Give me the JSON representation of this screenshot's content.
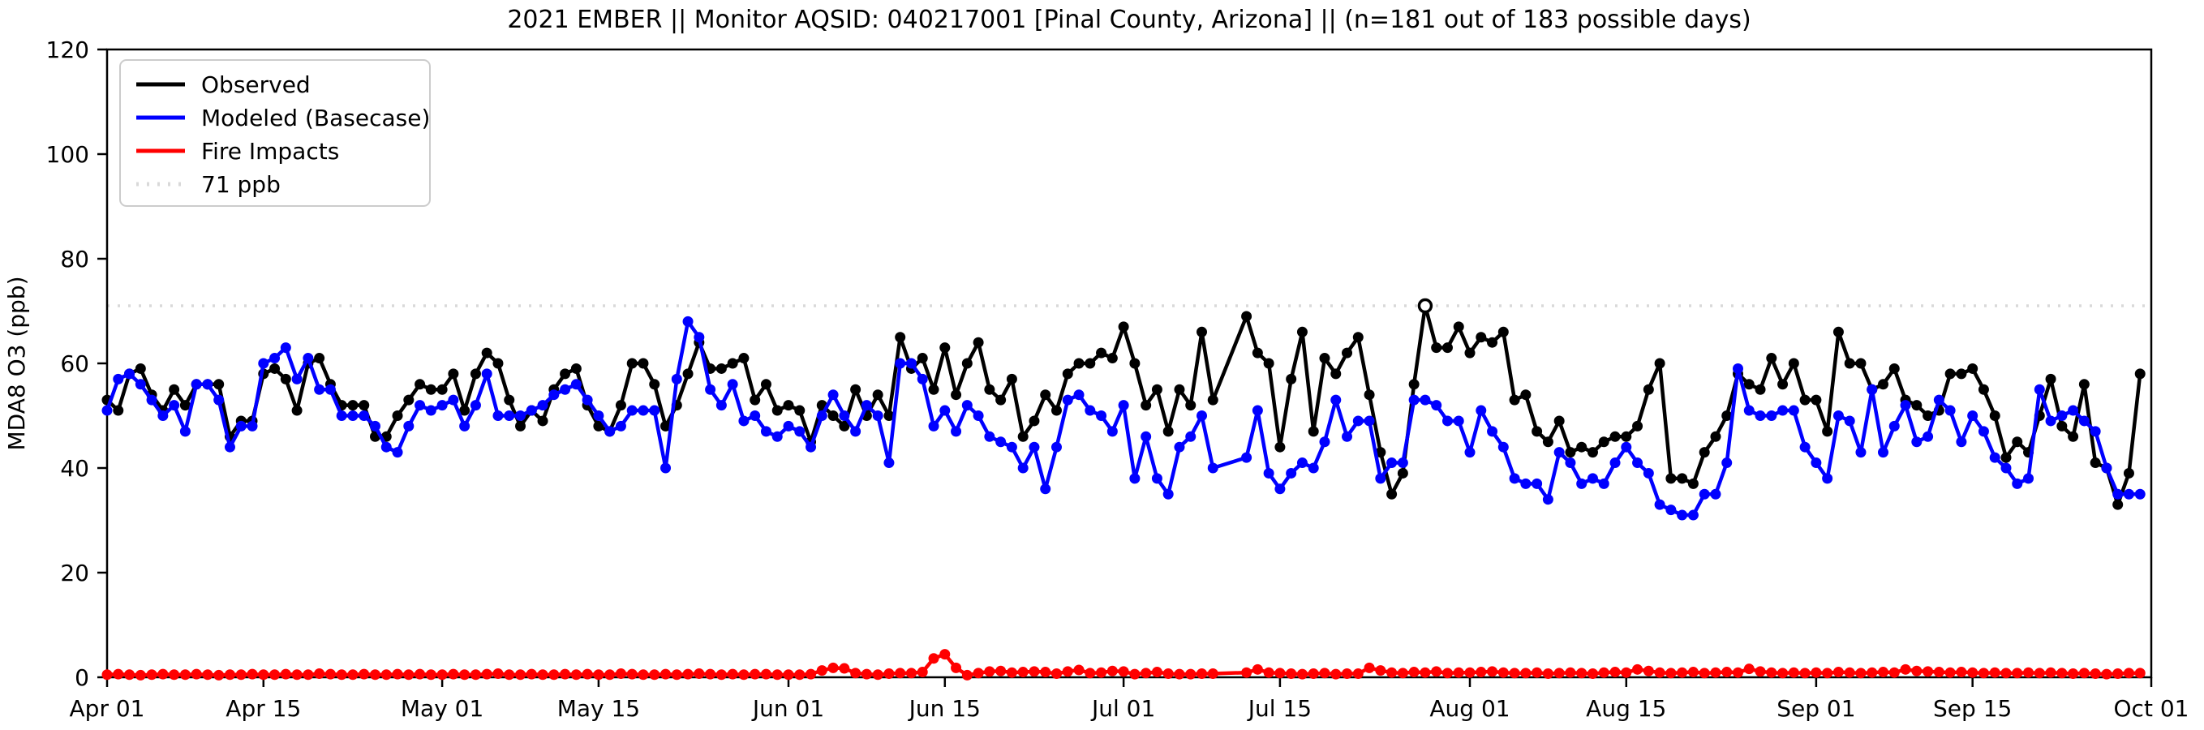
{
  "chart_data": {
    "type": "line",
    "title": "2021 EMBER || Monitor AQSID: 040217001 [Pinal County, Arizona] || (n=181 out of 183 possible days)",
    "xlabel": "",
    "ylabel": "MDA8 O3 (ppb)",
    "ylim": [
      0,
      120
    ],
    "y_ticks": [
      0,
      20,
      40,
      60,
      80,
      100,
      120
    ],
    "x_ticks": [
      {
        "day": 0,
        "label": "Apr 01"
      },
      {
        "day": 14,
        "label": "Apr 15"
      },
      {
        "day": 30,
        "label": "May 01"
      },
      {
        "day": 44,
        "label": "May 15"
      },
      {
        "day": 61,
        "label": "Jun 01"
      },
      {
        "day": 75,
        "label": "Jun 15"
      },
      {
        "day": 91,
        "label": "Jul 01"
      },
      {
        "day": 105,
        "label": "Jul 15"
      },
      {
        "day": 122,
        "label": "Aug 01"
      },
      {
        "day": 136,
        "label": "Aug 15"
      },
      {
        "day": 153,
        "label": "Sep 01"
      },
      {
        "day": 167,
        "label": "Sep 15"
      },
      {
        "day": 183,
        "label": "Oct 01"
      }
    ],
    "x_range_days": 183,
    "grid": false,
    "legend_position": "upper-left",
    "threshold_line": {
      "value": 71,
      "label": "71 ppb",
      "color": "#d9d9d9",
      "style": "dotted"
    },
    "exceedance_marker": {
      "series": "Observed",
      "index": 118,
      "style": "open-circle",
      "note": "observed value at 71 ppb shown as open circle"
    },
    "missing_days_indices": [
      100,
      101
    ],
    "series": [
      {
        "name": "Observed",
        "color": "#000000",
        "values": [
          53,
          51,
          58,
          59,
          54,
          51,
          55,
          52,
          56,
          56,
          56,
          46,
          49,
          49,
          58,
          59,
          57,
          51,
          60,
          61,
          56,
          52,
          52,
          52,
          46,
          46,
          50,
          53,
          56,
          55,
          55,
          58,
          51,
          58,
          62,
          60,
          53,
          48,
          51,
          49,
          55,
          58,
          59,
          52,
          48,
          47,
          52,
          60,
          60,
          56,
          48,
          52,
          58,
          64,
          59,
          59,
          60,
          61,
          53,
          56,
          51,
          52,
          51,
          45,
          52,
          50,
          48,
          55,
          50,
          54,
          50,
          65,
          59,
          61,
          55,
          63,
          54,
          60,
          64,
          55,
          53,
          57,
          46,
          49,
          54,
          51,
          58,
          60,
          60,
          62,
          61,
          67,
          60,
          52,
          55,
          47,
          55,
          52,
          66,
          53,
          null,
          null,
          69,
          62,
          60,
          44,
          57,
          66,
          47,
          61,
          58,
          62,
          65,
          54,
          43,
          35,
          39,
          56,
          71,
          63,
          63,
          67,
          62,
          65,
          64,
          66,
          53,
          54,
          47,
          45,
          49,
          43,
          44,
          43,
          45,
          46,
          46,
          48,
          55,
          60,
          38,
          38,
          37,
          43,
          46,
          50,
          58,
          56,
          55,
          61,
          56,
          60,
          53,
          53,
          47,
          66,
          60,
          60,
          55,
          56,
          59,
          53,
          52,
          50,
          51,
          58,
          58,
          59,
          55,
          50,
          42,
          45,
          43,
          50,
          57,
          48,
          46,
          56,
          41,
          40,
          33,
          39,
          58
        ]
      },
      {
        "name": "Modeled (Basecase)",
        "color": "#0000ff",
        "values": [
          51,
          57,
          58,
          56,
          53,
          50,
          52,
          47,
          56,
          56,
          53,
          44,
          48,
          48,
          60,
          61,
          63,
          57,
          61,
          55,
          55,
          50,
          50,
          50,
          48,
          44,
          43,
          48,
          52,
          51,
          52,
          53,
          48,
          52,
          58,
          50,
          50,
          50,
          51,
          52,
          54,
          55,
          56,
          53,
          50,
          47,
          48,
          51,
          51,
          51,
          40,
          57,
          68,
          65,
          55,
          52,
          56,
          49,
          50,
          47,
          46,
          48,
          47,
          44,
          50,
          54,
          50,
          47,
          52,
          50,
          41,
          60,
          60,
          57,
          48,
          51,
          47,
          52,
          50,
          46,
          45,
          44,
          40,
          44,
          36,
          44,
          53,
          54,
          51,
          50,
          47,
          52,
          38,
          46,
          38,
          35,
          44,
          46,
          50,
          40,
          null,
          null,
          42,
          51,
          39,
          36,
          39,
          41,
          40,
          45,
          53,
          46,
          49,
          49,
          38,
          41,
          41,
          53,
          53,
          52,
          49,
          49,
          43,
          51,
          47,
          44,
          38,
          37,
          37,
          34,
          43,
          41,
          37,
          38,
          37,
          41,
          44,
          41,
          39,
          33,
          32,
          31,
          31,
          35,
          35,
          41,
          59,
          51,
          50,
          50,
          51,
          51,
          44,
          41,
          38,
          50,
          49,
          43,
          55,
          43,
          48,
          52,
          45,
          46,
          53,
          51,
          45,
          50,
          47,
          42,
          40,
          37,
          38,
          55,
          49,
          50,
          51,
          49,
          47,
          40,
          35,
          35,
          35
        ]
      },
      {
        "name": "Fire Impacts",
        "color": "#ff0000",
        "values": [
          0.5,
          0.6,
          0.5,
          0.4,
          0.5,
          0.6,
          0.5,
          0.5,
          0.6,
          0.5,
          0.4,
          0.5,
          0.5,
          0.6,
          0.5,
          0.5,
          0.6,
          0.5,
          0.5,
          0.7,
          0.6,
          0.5,
          0.5,
          0.6,
          0.5,
          0.5,
          0.6,
          0.5,
          0.6,
          0.5,
          0.5,
          0.6,
          0.5,
          0.5,
          0.6,
          0.7,
          0.5,
          0.5,
          0.6,
          0.5,
          0.5,
          0.6,
          0.5,
          0.6,
          0.5,
          0.5,
          0.7,
          0.6,
          0.5,
          0.5,
          0.6,
          0.5,
          0.6,
          0.7,
          0.6,
          0.5,
          0.6,
          0.5,
          0.6,
          0.6,
          0.5,
          0.5,
          0.5,
          0.6,
          1.3,
          1.8,
          1.7,
          0.8,
          0.6,
          0.5,
          0.7,
          0.8,
          0.8,
          1.0,
          3.6,
          4.4,
          1.8,
          0.4,
          0.8,
          1.1,
          1.2,
          0.9,
          1.0,
          1.1,
          1.0,
          0.7,
          1.1,
          1.4,
          0.8,
          0.9,
          1.2,
          1.1,
          0.6,
          0.8,
          1.0,
          0.7,
          0.6,
          0.6,
          0.7,
          0.7,
          null,
          null,
          0.9,
          1.5,
          0.9,
          0.8,
          0.7,
          0.6,
          0.7,
          0.8,
          0.6,
          0.7,
          0.7,
          1.8,
          1.3,
          0.9,
          0.8,
          1.0,
          0.9,
          1.1,
          0.8,
          0.9,
          0.9,
          1.0,
          1.1,
          0.9,
          0.8,
          0.8,
          0.9,
          0.7,
          0.8,
          0.9,
          0.8,
          0.7,
          0.9,
          1.0,
          0.9,
          1.5,
          1.2,
          0.9,
          0.8,
          0.9,
          1.0,
          0.8,
          0.9,
          1.0,
          0.9,
          1.6,
          1.1,
          0.9,
          0.8,
          0.9,
          0.8,
          0.9,
          0.8,
          1.0,
          0.9,
          0.8,
          0.9,
          1.0,
          0.9,
          1.5,
          1.2,
          1.1,
          1.0,
          0.9,
          1.0,
          0.9,
          0.8,
          0.9,
          0.8,
          0.8,
          0.9,
          0.8,
          0.9,
          0.8,
          0.7,
          0.8,
          0.7,
          0.6,
          0.7,
          0.8,
          0.8
        ]
      }
    ],
    "legend_entries": [
      "Observed",
      "Modeled (Basecase)",
      "Fire Impacts",
      "71 ppb"
    ]
  }
}
